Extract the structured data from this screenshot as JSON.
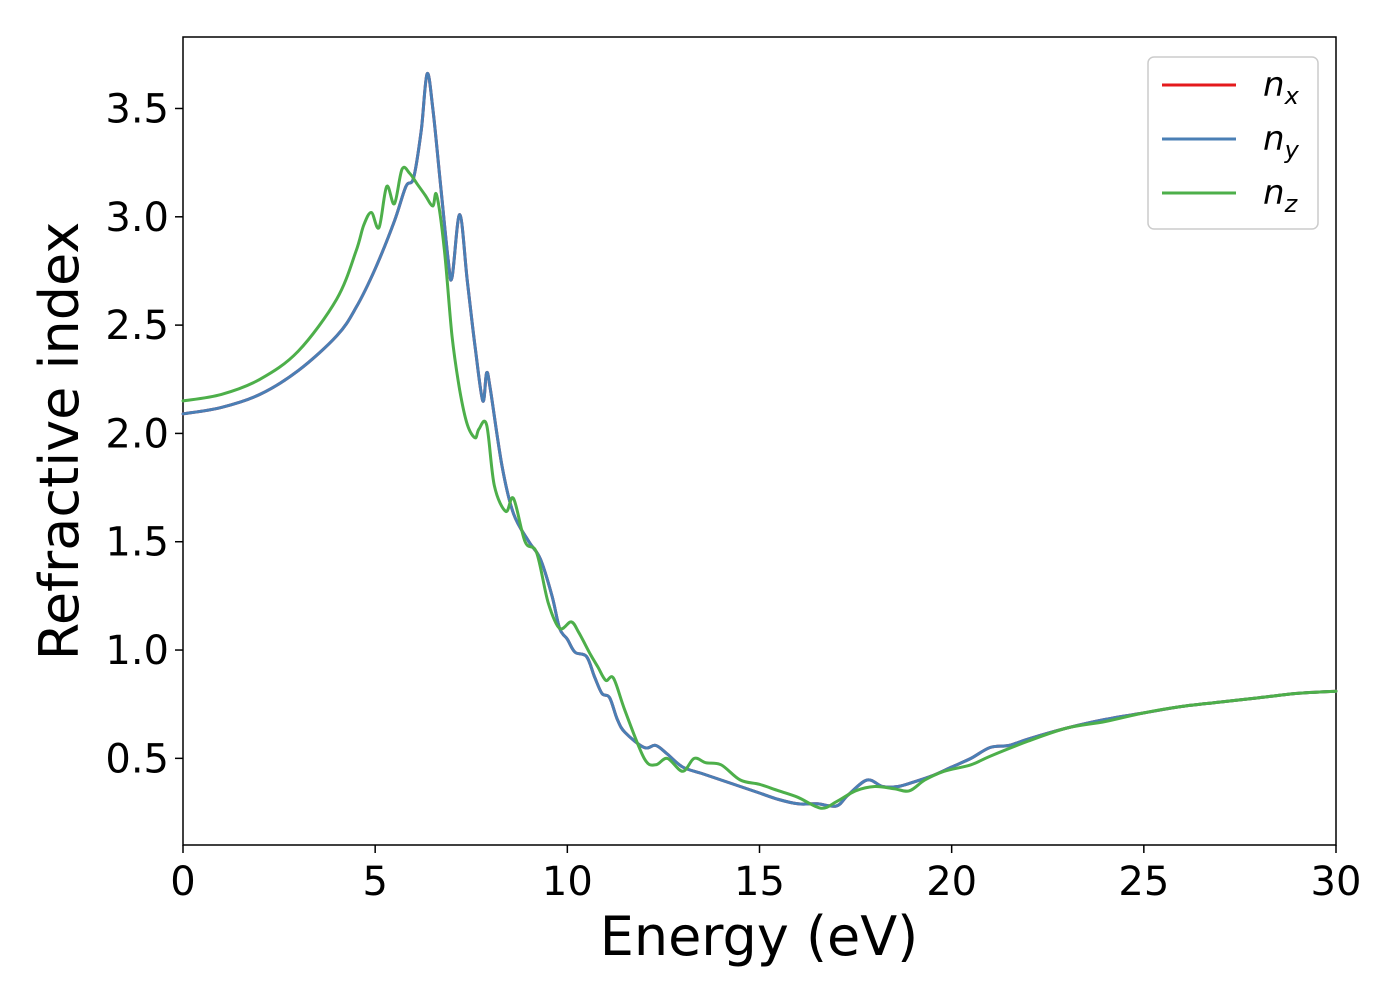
{
  "chart_data": {
    "type": "line",
    "xlabel": "Energy (eV)",
    "ylabel": "Refractive index",
    "xlim": [
      0,
      30
    ],
    "ylim": [
      0.1,
      3.83
    ],
    "xticks": [
      0,
      5,
      10,
      15,
      20,
      25,
      30
    ],
    "xtick_labels": [
      "0",
      "5",
      "10",
      "15",
      "20",
      "25",
      "30"
    ],
    "yticks": [
      0.5,
      1.0,
      1.5,
      2.0,
      2.5,
      3.0,
      3.5
    ],
    "ytick_labels": [
      "0.5",
      "1.0",
      "1.5",
      "2.0",
      "2.5",
      "3.0",
      "3.5"
    ],
    "grid": false,
    "legend_position": "top-right",
    "series": [
      {
        "name": "n",
        "subscript": "x",
        "color": "#e41a1c",
        "x": [
          0,
          1,
          2,
          3,
          4,
          4.5,
          5,
          5.5,
          5.8,
          6.0,
          6.2,
          6.35,
          6.5,
          6.7,
          6.9,
          7.0,
          7.2,
          7.4,
          7.6,
          7.8,
          7.9,
          8.0,
          8.3,
          8.6,
          9.0,
          9.3,
          9.6,
          9.8,
          10.0,
          10.2,
          10.5,
          10.7,
          10.9,
          11.1,
          11.3,
          11.5,
          12.0,
          12.3,
          12.6,
          13.0,
          13.5,
          14.0,
          14.5,
          15.0,
          15.5,
          16.0,
          16.5,
          17.0,
          17.3,
          17.8,
          18.2,
          18.6,
          19.0,
          19.5,
          20.0,
          20.5,
          21.0,
          21.5,
          22.0,
          23.0,
          24.0,
          25.0,
          26.0,
          27.0,
          28.0,
          29.0,
          30.0
        ],
        "y": [
          2.09,
          2.12,
          2.18,
          2.29,
          2.45,
          2.58,
          2.76,
          2.98,
          3.14,
          3.18,
          3.4,
          3.66,
          3.5,
          3.15,
          2.8,
          2.72,
          3.01,
          2.7,
          2.4,
          2.15,
          2.28,
          2.2,
          1.85,
          1.63,
          1.5,
          1.42,
          1.25,
          1.1,
          1.05,
          0.99,
          0.97,
          0.88,
          0.8,
          0.78,
          0.68,
          0.62,
          0.55,
          0.56,
          0.52,
          0.46,
          0.43,
          0.4,
          0.37,
          0.34,
          0.31,
          0.29,
          0.29,
          0.28,
          0.33,
          0.4,
          0.37,
          0.37,
          0.39,
          0.42,
          0.46,
          0.5,
          0.55,
          0.56,
          0.59,
          0.64,
          0.68,
          0.71,
          0.74,
          0.76,
          0.78,
          0.8,
          0.81
        ]
      },
      {
        "name": "n",
        "subscript": "y",
        "color": "#4a7fb5",
        "x": [
          0,
          1,
          2,
          3,
          4,
          4.5,
          5,
          5.5,
          5.8,
          6.0,
          6.2,
          6.35,
          6.5,
          6.7,
          6.9,
          7.0,
          7.2,
          7.4,
          7.6,
          7.8,
          7.9,
          8.0,
          8.3,
          8.6,
          9.0,
          9.3,
          9.6,
          9.8,
          10.0,
          10.2,
          10.5,
          10.7,
          10.9,
          11.1,
          11.3,
          11.5,
          12.0,
          12.3,
          12.6,
          13.0,
          13.5,
          14.0,
          14.5,
          15.0,
          15.5,
          16.0,
          16.5,
          17.0,
          17.3,
          17.8,
          18.2,
          18.6,
          19.0,
          19.5,
          20.0,
          20.5,
          21.0,
          21.5,
          22.0,
          23.0,
          24.0,
          25.0,
          26.0,
          27.0,
          28.0,
          29.0,
          30.0
        ],
        "y": [
          2.09,
          2.12,
          2.18,
          2.29,
          2.45,
          2.58,
          2.76,
          2.98,
          3.14,
          3.18,
          3.4,
          3.66,
          3.5,
          3.15,
          2.8,
          2.72,
          3.01,
          2.7,
          2.4,
          2.15,
          2.28,
          2.2,
          1.85,
          1.63,
          1.5,
          1.42,
          1.25,
          1.1,
          1.05,
          0.99,
          0.97,
          0.88,
          0.8,
          0.78,
          0.68,
          0.62,
          0.55,
          0.56,
          0.52,
          0.46,
          0.43,
          0.4,
          0.37,
          0.34,
          0.31,
          0.29,
          0.29,
          0.28,
          0.33,
          0.4,
          0.37,
          0.37,
          0.39,
          0.42,
          0.46,
          0.5,
          0.55,
          0.56,
          0.59,
          0.64,
          0.68,
          0.71,
          0.74,
          0.76,
          0.78,
          0.8,
          0.81
        ]
      },
      {
        "name": "n",
        "subscript": "z",
        "color": "#4daf4a",
        "x": [
          0,
          1,
          2,
          3,
          4,
          4.5,
          4.7,
          4.9,
          5.1,
          5.3,
          5.5,
          5.7,
          5.9,
          6.1,
          6.3,
          6.5,
          6.6,
          6.8,
          7.0,
          7.2,
          7.4,
          7.6,
          7.7,
          7.9,
          8.1,
          8.4,
          8.6,
          8.9,
          9.2,
          9.5,
          9.8,
          10.1,
          10.3,
          10.6,
          10.8,
          11.0,
          11.2,
          11.5,
          12.0,
          12.3,
          12.6,
          13.0,
          13.3,
          13.6,
          14.0,
          14.5,
          15.0,
          15.5,
          16.0,
          16.6,
          17.0,
          17.5,
          18.0,
          18.5,
          18.9,
          19.3,
          19.8,
          20.5,
          21.0,
          22.0,
          23.0,
          24.0,
          25.0,
          26.0,
          27.0,
          28.0,
          29.0,
          30.0
        ],
        "y": [
          2.15,
          2.18,
          2.25,
          2.38,
          2.62,
          2.84,
          2.96,
          3.02,
          2.95,
          3.14,
          3.06,
          3.22,
          3.2,
          3.15,
          3.1,
          3.05,
          3.1,
          2.85,
          2.45,
          2.2,
          2.04,
          1.98,
          2.02,
          2.04,
          1.76,
          1.64,
          1.7,
          1.5,
          1.45,
          1.22,
          1.1,
          1.13,
          1.08,
          0.98,
          0.92,
          0.86,
          0.87,
          0.72,
          0.5,
          0.47,
          0.5,
          0.44,
          0.5,
          0.48,
          0.47,
          0.4,
          0.38,
          0.35,
          0.32,
          0.27,
          0.3,
          0.35,
          0.37,
          0.36,
          0.35,
          0.4,
          0.44,
          0.47,
          0.51,
          0.58,
          0.64,
          0.67,
          0.71,
          0.74,
          0.76,
          0.78,
          0.8,
          0.81
        ]
      }
    ]
  }
}
